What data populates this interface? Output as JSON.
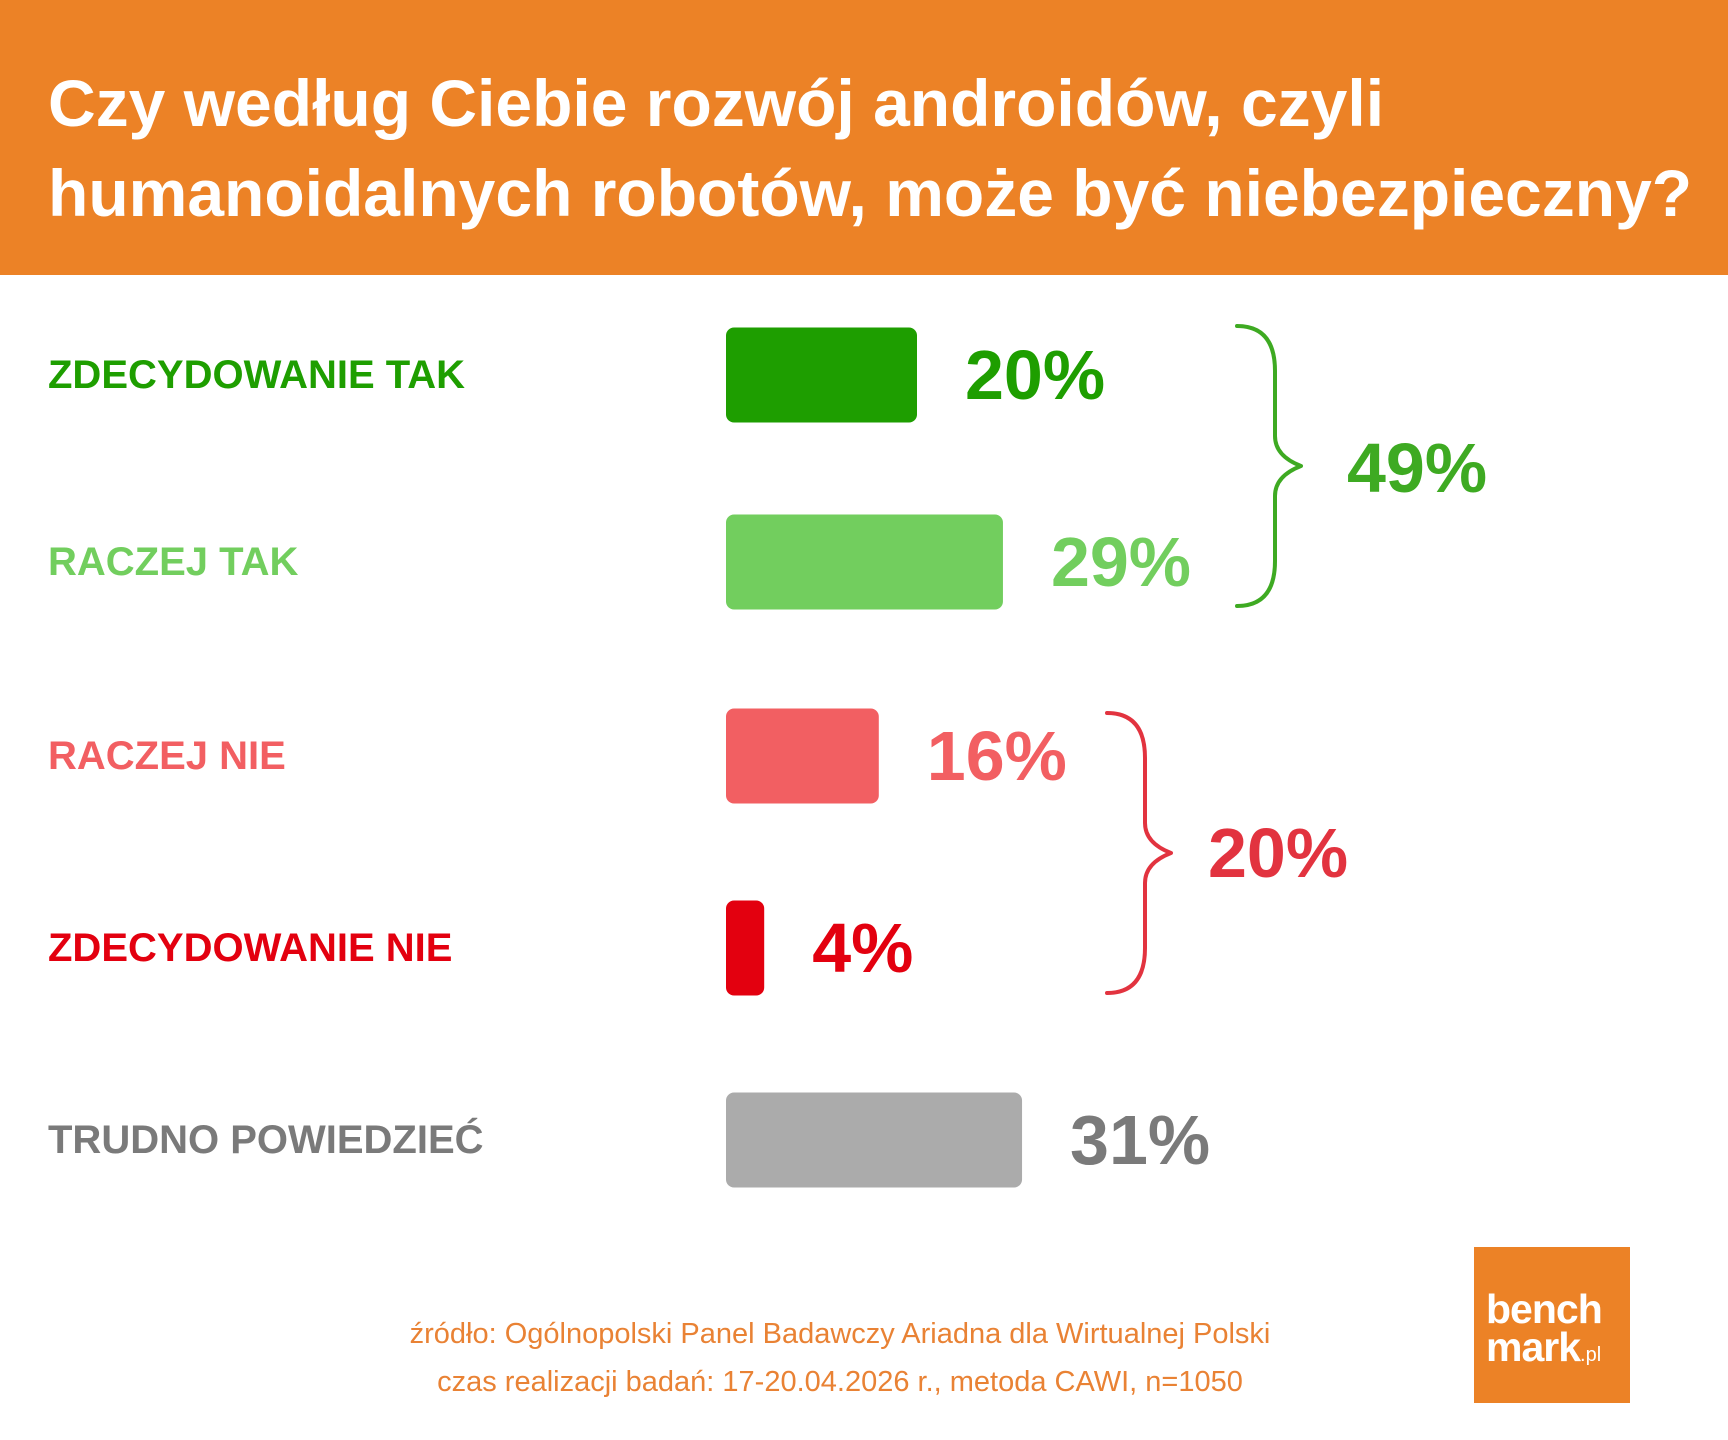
{
  "title": {
    "line1": "Czy według Ciebie rozwój androidów, czyli",
    "line2": "humanoidalnych robotów, może być niebezpieczny?"
  },
  "chart_data": {
    "type": "bar",
    "orientation": "horizontal",
    "categories": [
      "ZDECYDOWANIE TAK",
      "RACZEJ TAK",
      "RACZEJ NIE",
      "ZDECYDOWANIE NIE",
      "TRUDNO POWIEDZIEĆ"
    ],
    "values": [
      20,
      29,
      16,
      4,
      31
    ],
    "value_labels": [
      "20%",
      "29%",
      "16%",
      "4%",
      "31%"
    ],
    "colors": [
      "#1E9E00",
      "#72CE5E",
      "#F25F62",
      "#E3000F",
      "#ABABAB"
    ],
    "label_colors": [
      "#1E9E00",
      "#72CE5E",
      "#F25F62",
      "#E3000F",
      "#7A7A7A"
    ],
    "value_colors": [
      "#1E9E00",
      "#72CE5E",
      "#F25F62",
      "#E3000F",
      "#7A7A7A"
    ],
    "groups": [
      {
        "categories": [
          "ZDECYDOWANIE TAK",
          "RACZEJ TAK"
        ],
        "value": 49,
        "label": "49%",
        "color": "#3EAA22"
      },
      {
        "categories": [
          "RACZEJ NIE",
          "ZDECYDOWANIE NIE"
        ],
        "value": 20,
        "label": "20%",
        "color": "#E2333F"
      }
    ],
    "grid": false,
    "axes_visible": false
  },
  "footer": {
    "source": "źródło: Ogólnopolski Panel Badawczy Ariadna dla Wirtualnej Polski",
    "details": "czas realizacji badań: 17-20.04.2026 r., metoda CAWI, n=1050"
  },
  "logo": {
    "line1": "bench",
    "line2": "mark",
    "suffix": ".pl"
  },
  "colors": {
    "accent": "#EC8226",
    "background": "#FFFFFF"
  }
}
